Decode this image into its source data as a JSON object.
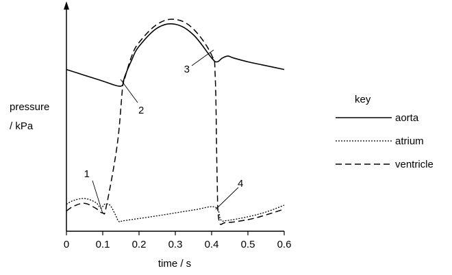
{
  "chart_data": {
    "type": "line",
    "title": "",
    "ylabel_line1": "pressure",
    "ylabel_line2": "/ kPa",
    "xlabel": "time / s",
    "xlim": [
      0,
      0.6
    ],
    "x_ticks": [
      0,
      0.1,
      0.2,
      0.3,
      0.4,
      0.5,
      0.6
    ],
    "x_tick_labels": [
      "0",
      "0.1",
      "0.2",
      "0.3",
      "0.4",
      "0.5",
      "0.6"
    ],
    "y_ticks_shown": false,
    "grid": false,
    "legend_title": "key",
    "legend_placement": "right",
    "series": [
      {
        "name": "aorta",
        "style": "solid",
        "x": [
          0,
          0.05,
          0.1,
          0.14,
          0.155,
          0.16,
          0.18,
          0.2,
          0.25,
          0.3,
          0.35,
          0.4,
          0.415,
          0.43,
          0.445,
          0.46,
          0.5,
          0.55,
          0.6
        ],
        "y": [
          0.84,
          0.81,
          0.78,
          0.755,
          0.76,
          0.8,
          0.89,
          0.96,
          1.055,
          1.075,
          1.02,
          0.9,
          0.88,
          0.9,
          0.91,
          0.9,
          0.88,
          0.86,
          0.84
        ]
      },
      {
        "name": "atrium",
        "style": "dotted",
        "x": [
          0,
          0.02,
          0.05,
          0.08,
          0.095,
          0.105,
          0.12,
          0.135,
          0.145,
          0.16,
          0.25,
          0.35,
          0.41,
          0.425,
          0.44,
          0.5,
          0.55,
          0.6
        ],
        "y": [
          0.14,
          0.16,
          0.17,
          0.15,
          0.12,
          0.14,
          0.135,
          0.085,
          0.05,
          0.055,
          0.08,
          0.11,
          0.125,
          0.06,
          0.055,
          0.075,
          0.1,
          0.135
        ]
      },
      {
        "name": "ventricle",
        "style": "dashed",
        "x": [
          0,
          0.02,
          0.05,
          0.08,
          0.1,
          0.11,
          0.14,
          0.155,
          0.16,
          0.18,
          0.2,
          0.25,
          0.3,
          0.35,
          0.4,
          0.41,
          0.415,
          0.42,
          0.44,
          0.5,
          0.55,
          0.6
        ],
        "y": [
          0.105,
          0.13,
          0.145,
          0.12,
          0.095,
          0.13,
          0.45,
          0.755,
          0.79,
          0.91,
          0.98,
          1.075,
          1.1,
          1.05,
          0.915,
          0.8,
          0.3,
          0.06,
          0.045,
          0.06,
          0.085,
          0.115
        ]
      }
    ],
    "annotations": [
      {
        "label": "1",
        "x": 0.1,
        "y": 0.095
      },
      {
        "label": "2",
        "x": 0.148,
        "y": 0.755
      },
      {
        "label": "3",
        "x": 0.408,
        "y": 0.905
      },
      {
        "label": "4",
        "x": 0.413,
        "y": 0.125
      }
    ]
  }
}
